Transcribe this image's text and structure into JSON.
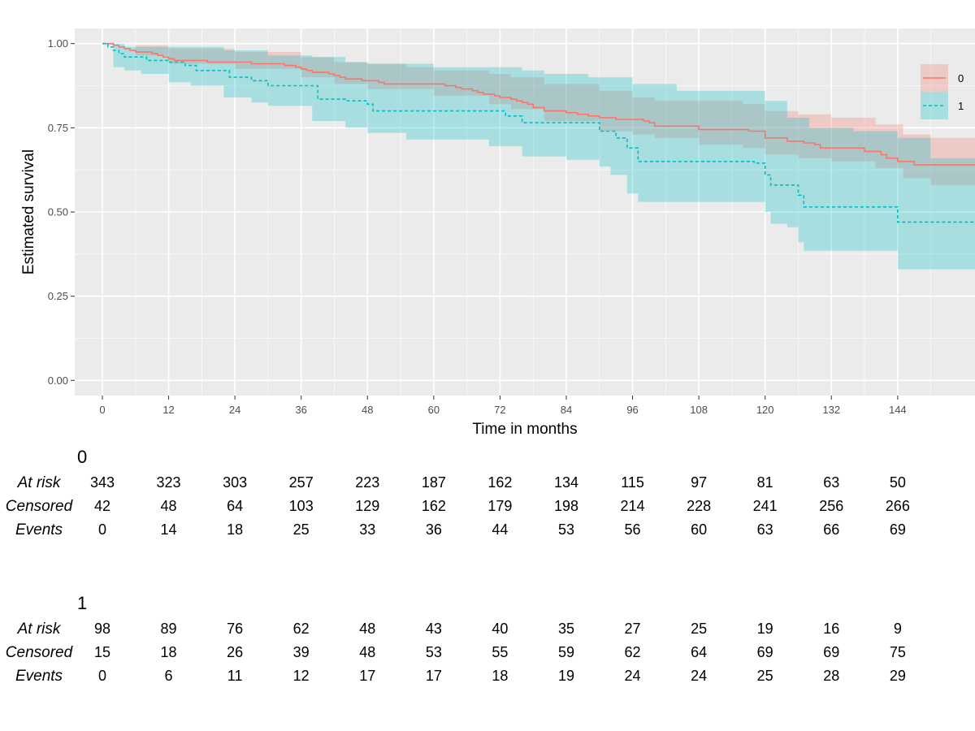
{
  "chart_data": {
    "type": "line",
    "subtype": "kaplan-meier",
    "xlabel": "Time in months",
    "ylabel": "Estimated survival",
    "xlim": [
      -5,
      158
    ],
    "ylim": [
      -0.045,
      1.045
    ],
    "x_ticks": [
      0,
      12,
      24,
      36,
      48,
      60,
      72,
      84,
      96,
      108,
      120,
      132,
      144
    ],
    "x_tick_labels": [
      "0",
      "12",
      "24",
      "36",
      "48",
      "60",
      "72",
      "84",
      "96",
      "108",
      "120",
      "132",
      "144"
    ],
    "y_ticks": [
      0,
      0.25,
      0.5,
      0.75,
      1
    ],
    "y_tick_labels": [
      "0.00",
      "0.25",
      "0.50",
      "0.75",
      "1.00"
    ],
    "grid": true,
    "legend_position": "right",
    "series": [
      {
        "name": "0",
        "color": "#F8766D",
        "line_style": "solid",
        "points": [
          [
            0,
            1.0
          ],
          [
            2,
            0.995
          ],
          [
            3,
            0.99
          ],
          [
            4,
            0.985
          ],
          [
            5,
            0.98
          ],
          [
            6,
            0.975
          ],
          [
            9,
            0.97
          ],
          [
            10,
            0.965
          ],
          [
            11,
            0.96
          ],
          [
            12,
            0.955
          ],
          [
            13,
            0.95
          ],
          [
            14,
            0.95
          ],
          [
            18,
            0.95
          ],
          [
            19,
            0.945
          ],
          [
            27,
            0.94
          ],
          [
            33,
            0.935
          ],
          [
            35,
            0.93
          ],
          [
            36,
            0.925
          ],
          [
            37,
            0.92
          ],
          [
            38,
            0.915
          ],
          [
            41,
            0.91
          ],
          [
            42,
            0.905
          ],
          [
            43,
            0.9
          ],
          [
            44,
            0.895
          ],
          [
            46,
            0.895
          ],
          [
            47,
            0.89
          ],
          [
            50,
            0.885
          ],
          [
            51,
            0.88
          ],
          [
            53,
            0.88
          ],
          [
            57,
            0.88
          ],
          [
            62,
            0.875
          ],
          [
            64,
            0.87
          ],
          [
            65,
            0.865
          ],
          [
            67,
            0.86
          ],
          [
            68,
            0.855
          ],
          [
            69,
            0.85
          ],
          [
            71,
            0.845
          ],
          [
            72,
            0.84
          ],
          [
            74,
            0.835
          ],
          [
            75,
            0.83
          ],
          [
            76,
            0.825
          ],
          [
            77,
            0.82
          ],
          [
            78,
            0.81
          ],
          [
            80,
            0.8
          ],
          [
            84,
            0.795
          ],
          [
            86,
            0.79
          ],
          [
            88,
            0.785
          ],
          [
            90,
            0.78
          ],
          [
            93,
            0.775
          ],
          [
            96,
            0.775
          ],
          [
            98,
            0.77
          ],
          [
            99,
            0.765
          ],
          [
            100,
            0.755
          ],
          [
            103,
            0.755
          ],
          [
            108,
            0.745
          ],
          [
            112,
            0.745
          ],
          [
            117,
            0.74
          ],
          [
            120,
            0.72
          ],
          [
            123,
            0.72
          ],
          [
            124,
            0.71
          ],
          [
            127,
            0.705
          ],
          [
            129,
            0.7
          ],
          [
            130,
            0.69
          ],
          [
            135,
            0.69
          ],
          [
            138,
            0.68
          ],
          [
            141,
            0.67
          ],
          [
            142,
            0.66
          ],
          [
            144,
            0.65
          ],
          [
            147,
            0.64
          ],
          [
            158,
            0.64
          ]
        ],
        "ci_upper": [
          [
            0,
            1.0
          ],
          [
            6,
            0.995
          ],
          [
            12,
            0.985
          ],
          [
            24,
            0.975
          ],
          [
            36,
            0.96
          ],
          [
            42,
            0.945
          ],
          [
            48,
            0.94
          ],
          [
            55,
            0.93
          ],
          [
            60,
            0.92
          ],
          [
            70,
            0.91
          ],
          [
            74,
            0.9
          ],
          [
            80,
            0.88
          ],
          [
            90,
            0.86
          ],
          [
            96,
            0.84
          ],
          [
            100,
            0.83
          ],
          [
            108,
            0.83
          ],
          [
            116,
            0.82
          ],
          [
            120,
            0.8
          ],
          [
            126,
            0.79
          ],
          [
            132,
            0.78
          ],
          [
            140,
            0.76
          ],
          [
            145,
            0.73
          ],
          [
            150,
            0.72
          ],
          [
            158,
            0.72
          ]
        ],
        "ci_lower": [
          [
            0,
            1.0
          ],
          [
            6,
            0.965
          ],
          [
            12,
            0.94
          ],
          [
            24,
            0.925
          ],
          [
            36,
            0.9
          ],
          [
            42,
            0.88
          ],
          [
            48,
            0.865
          ],
          [
            60,
            0.845
          ],
          [
            70,
            0.82
          ],
          [
            74,
            0.805
          ],
          [
            80,
            0.77
          ],
          [
            90,
            0.74
          ],
          [
            96,
            0.73
          ],
          [
            100,
            0.72
          ],
          [
            108,
            0.7
          ],
          [
            116,
            0.69
          ],
          [
            120,
            0.67
          ],
          [
            126,
            0.66
          ],
          [
            132,
            0.65
          ],
          [
            140,
            0.63
          ],
          [
            145,
            0.6
          ],
          [
            150,
            0.58
          ],
          [
            158,
            0.56
          ]
        ]
      },
      {
        "name": "1",
        "color": "#00BFC4",
        "line_style": "dashed",
        "points": [
          [
            0,
            1.0
          ],
          [
            1,
            0.99
          ],
          [
            2,
            0.98
          ],
          [
            3,
            0.97
          ],
          [
            4,
            0.96
          ],
          [
            7,
            0.96
          ],
          [
            8,
            0.95
          ],
          [
            12,
            0.945
          ],
          [
            13,
            0.945
          ],
          [
            15,
            0.935
          ],
          [
            16,
            0.935
          ],
          [
            17,
            0.92
          ],
          [
            22,
            0.92
          ],
          [
            23,
            0.9
          ],
          [
            27,
            0.89
          ],
          [
            30,
            0.875
          ],
          [
            38,
            0.875
          ],
          [
            39,
            0.835
          ],
          [
            44,
            0.83
          ],
          [
            48,
            0.82
          ],
          [
            49,
            0.8
          ],
          [
            55,
            0.8
          ],
          [
            70,
            0.8
          ],
          [
            73,
            0.785
          ],
          [
            76,
            0.765
          ],
          [
            81,
            0.765
          ],
          [
            88,
            0.765
          ],
          [
            90,
            0.74
          ],
          [
            92,
            0.74
          ],
          [
            93,
            0.72
          ],
          [
            95,
            0.69
          ],
          [
            97,
            0.65
          ],
          [
            108,
            0.65
          ],
          [
            118,
            0.645
          ],
          [
            120,
            0.61
          ],
          [
            121,
            0.58
          ],
          [
            124,
            0.58
          ],
          [
            126,
            0.55
          ],
          [
            127,
            0.515
          ],
          [
            143,
            0.515
          ],
          [
            144,
            0.47
          ],
          [
            158,
            0.47
          ]
        ],
        "ci_upper": [
          [
            0,
            1.0
          ],
          [
            4,
            0.99
          ],
          [
            12,
            0.99
          ],
          [
            22,
            0.98
          ],
          [
            30,
            0.965
          ],
          [
            38,
            0.96
          ],
          [
            44,
            0.945
          ],
          [
            48,
            0.94
          ],
          [
            60,
            0.93
          ],
          [
            70,
            0.93
          ],
          [
            76,
            0.92
          ],
          [
            80,
            0.91
          ],
          [
            88,
            0.9
          ],
          [
            96,
            0.88
          ],
          [
            104,
            0.86
          ],
          [
            118,
            0.86
          ],
          [
            120,
            0.83
          ],
          [
            124,
            0.78
          ],
          [
            128,
            0.75
          ],
          [
            136,
            0.74
          ],
          [
            144,
            0.72
          ],
          [
            150,
            0.66
          ],
          [
            158,
            0.66
          ]
        ],
        "ci_lower": [
          [
            0,
            1.0
          ],
          [
            2,
            0.93
          ],
          [
            4,
            0.92
          ],
          [
            7,
            0.91
          ],
          [
            12,
            0.885
          ],
          [
            16,
            0.875
          ],
          [
            22,
            0.84
          ],
          [
            27,
            0.825
          ],
          [
            30,
            0.815
          ],
          [
            38,
            0.77
          ],
          [
            44,
            0.75
          ],
          [
            48,
            0.735
          ],
          [
            55,
            0.715
          ],
          [
            70,
            0.695
          ],
          [
            76,
            0.665
          ],
          [
            84,
            0.655
          ],
          [
            90,
            0.635
          ],
          [
            92,
            0.61
          ],
          [
            95,
            0.555
          ],
          [
            97,
            0.53
          ],
          [
            108,
            0.53
          ],
          [
            118,
            0.53
          ],
          [
            120,
            0.5
          ],
          [
            121,
            0.465
          ],
          [
            124,
            0.455
          ],
          [
            126,
            0.41
          ],
          [
            127,
            0.385
          ],
          [
            143,
            0.385
          ],
          [
            144,
            0.33
          ],
          [
            158,
            0.33
          ]
        ]
      }
    ],
    "risk_table": {
      "time_points": [
        0,
        12,
        24,
        36,
        48,
        60,
        72,
        84,
        96,
        108,
        120,
        132,
        144
      ],
      "row_labels": [
        "At risk",
        "Censored",
        "Events"
      ],
      "groups": [
        {
          "name": "0",
          "at_risk": [
            343,
            323,
            303,
            257,
            223,
            187,
            162,
            134,
            115,
            97,
            81,
            63,
            50
          ],
          "censored": [
            42,
            48,
            64,
            103,
            129,
            162,
            179,
            198,
            214,
            228,
            241,
            256,
            266
          ],
          "events": [
            0,
            14,
            18,
            25,
            33,
            36,
            44,
            53,
            56,
            60,
            63,
            66,
            69
          ]
        },
        {
          "name": "1",
          "at_risk": [
            98,
            89,
            76,
            62,
            48,
            43,
            40,
            35,
            27,
            25,
            19,
            16,
            9
          ],
          "censored": [
            15,
            18,
            26,
            39,
            48,
            53,
            55,
            59,
            62,
            64,
            69,
            69,
            75
          ],
          "events": [
            0,
            6,
            11,
            12,
            17,
            17,
            18,
            19,
            24,
            24,
            25,
            28,
            29
          ]
        }
      ]
    }
  }
}
